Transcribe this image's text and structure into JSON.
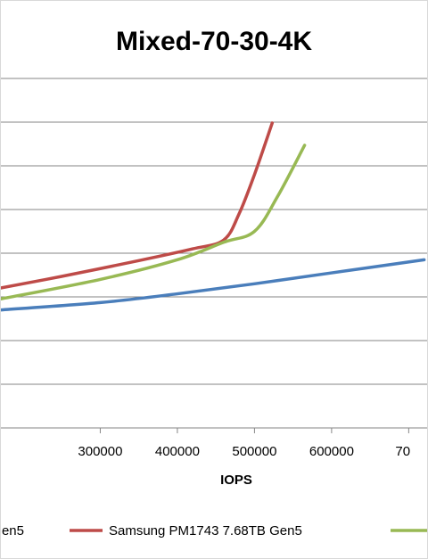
{
  "chart_data": {
    "type": "line",
    "title": "Mixed-70-30-4K",
    "xlabel": "IOPS",
    "ylabel": "",
    "xlim": [
      170000,
      725000
    ],
    "ylim": [
      0,
      8
    ],
    "grid": true,
    "legend_placement": "bottom",
    "x_tick_labels": [
      "300000",
      "400000",
      "500000",
      "600000",
      "70"
    ],
    "series": [
      {
        "name": "en5",
        "color": "#4A7EBB",
        "x": [
          170000,
          300000,
          400000,
          500000,
          600000,
          720000
        ],
        "y": [
          2.7,
          2.87,
          3.07,
          3.3,
          3.55,
          3.85
        ]
      },
      {
        "name": "Samsung PM1743 7.68TB Gen5",
        "color": "#BE4B48",
        "x": [
          170000,
          250000,
          350000,
          420000,
          460000,
          480000,
          500000,
          523000
        ],
        "y": [
          3.2,
          3.47,
          3.83,
          4.1,
          4.3,
          4.9,
          5.8,
          6.98
        ]
      },
      {
        "name": "",
        "color": "#98B954",
        "x": [
          170000,
          300000,
          400000,
          460000,
          500000,
          530000,
          565000
        ],
        "y": [
          2.95,
          3.4,
          3.85,
          4.25,
          4.5,
          5.3,
          6.47
        ]
      }
    ]
  }
}
